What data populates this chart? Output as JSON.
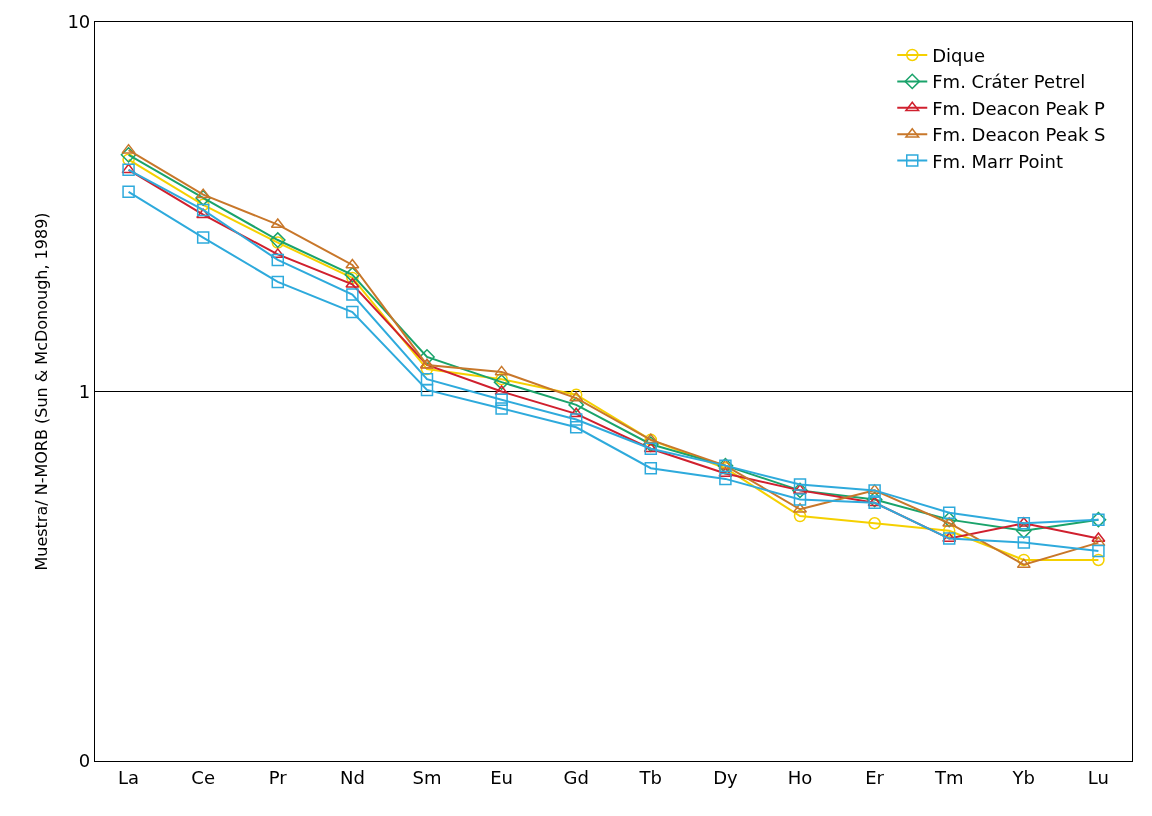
{
  "chart_data": {
    "type": "line",
    "ylabel": "Muestra/ N-MORB (Sun & McDonough, 1989)",
    "categories": [
      "La",
      "Ce",
      "Pr",
      "Nd",
      "Sm",
      "Eu",
      "Gd",
      "Tb",
      "Dy",
      "Ho",
      "Er",
      "Tm",
      "Yb",
      "Lu"
    ],
    "log": "y",
    "ylim": [
      0.1,
      10
    ],
    "yticks": [
      {
        "value": 0.1,
        "label": "0"
      },
      1,
      10
    ],
    "grid": "y",
    "legend": "top right",
    "series": [
      {
        "name": "Dique",
        "color": "#f5d000",
        "marker": "circle",
        "values": [
          4.24,
          3.2,
          2.53,
          2.03,
          1.15,
          1.08,
          0.98,
          0.74,
          0.62,
          0.46,
          0.44,
          0.42,
          0.35,
          0.35
        ]
      },
      {
        "name": "Fm. Cráter Petrel",
        "color": "#1aa36b",
        "marker": "diamond",
        "values": [
          4.37,
          3.34,
          2.57,
          2.07,
          1.24,
          1.06,
          0.92,
          0.72,
          0.63,
          0.54,
          0.51,
          0.45,
          0.42,
          0.45
        ]
      },
      {
        "name": "Fm. Deacon Peak P",
        "color": "#d0202e",
        "marker": "triangle",
        "values": [
          3.98,
          3.01,
          2.35,
          1.95,
          1.18,
          1.0,
          0.87,
          0.7,
          0.6,
          0.54,
          0.5,
          0.4,
          0.44,
          0.4
        ]
      },
      {
        "name": "Fm. Deacon Peak S",
        "color": "#c8772a",
        "marker": "triangle",
        "values": [
          4.5,
          3.41,
          2.83,
          2.2,
          1.18,
          1.13,
          0.96,
          0.74,
          0.63,
          0.48,
          0.54,
          0.44,
          0.34,
          0.39
        ]
      },
      {
        "name": "Fm. Marr Point",
        "color": "#2eaadc",
        "marker": "square",
        "values": [
          3.98,
          3.1,
          2.27,
          1.83,
          1.08,
          0.95,
          0.84,
          0.7,
          0.63,
          0.56,
          0.54,
          0.47,
          0.44,
          0.45
        ]
      },
      {
        "color": "#2eaadc",
        "marker": "square",
        "values": [
          3.47,
          2.61,
          1.98,
          1.64,
          1.01,
          0.9,
          0.8,
          0.62,
          0.58,
          0.51,
          0.5,
          0.4,
          0.39,
          0.37
        ]
      }
    ]
  }
}
